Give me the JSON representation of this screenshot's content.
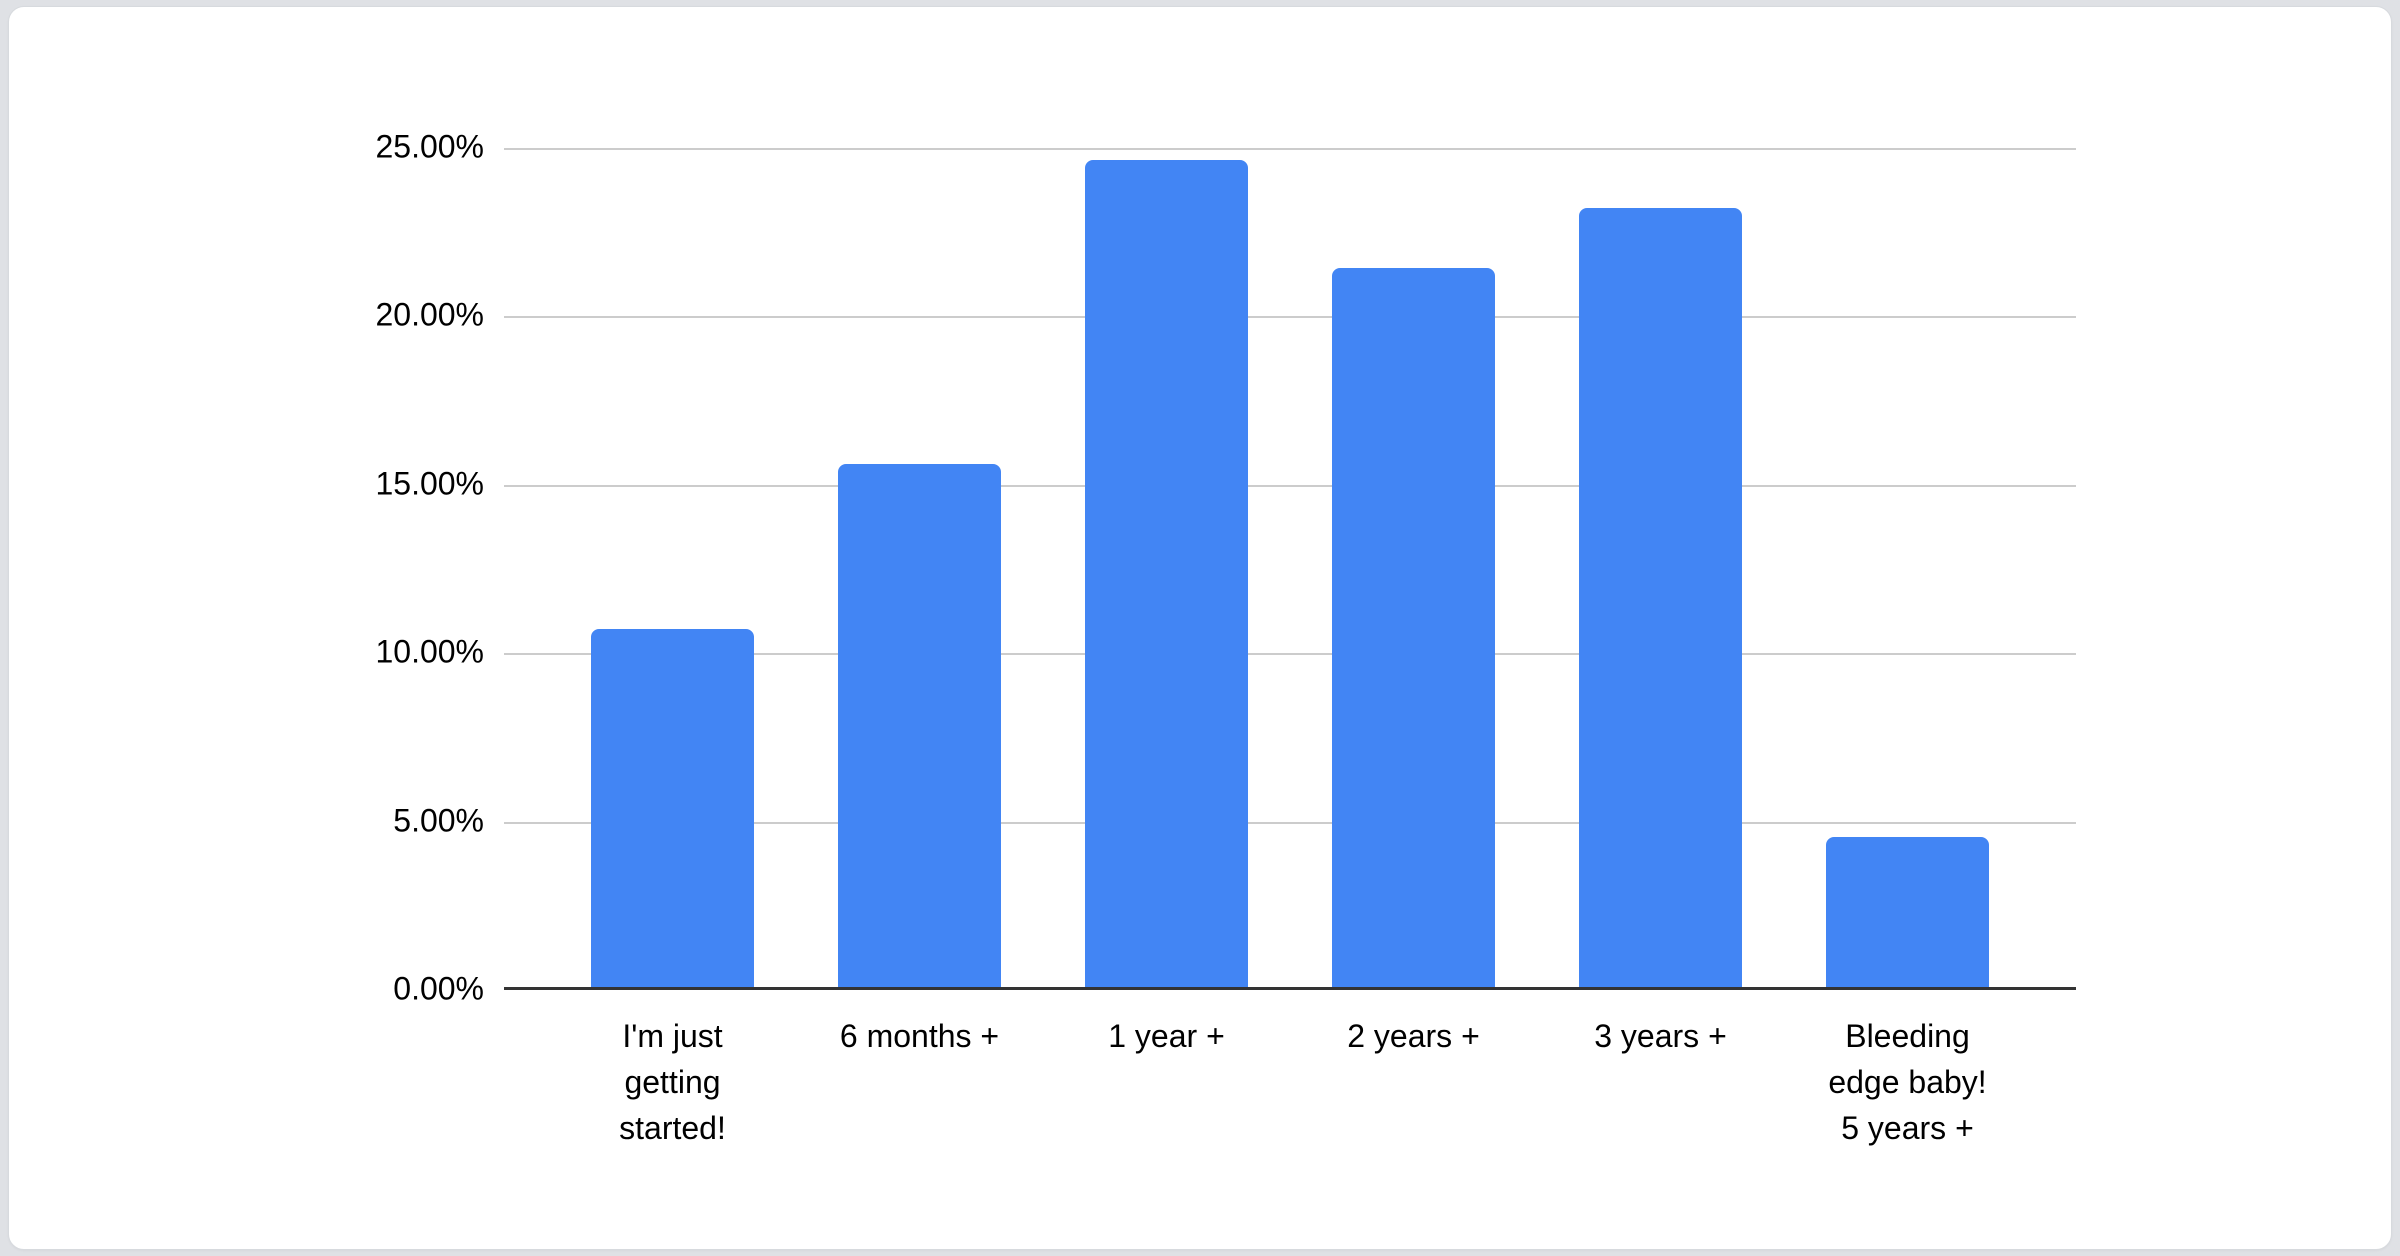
{
  "page": {
    "background_color": "#dfe1e5",
    "card_background_color": "#ffffff"
  },
  "chart_data": {
    "type": "bar",
    "title": "",
    "xlabel": "",
    "ylabel": "",
    "categories": [
      "I'm just\ngetting\nstarted!",
      "6 months +",
      "1 year +",
      "2 years +",
      "3 years +",
      "Bleeding\nedge baby!\n5 years +"
    ],
    "values": [
      10.7,
      15.6,
      24.6,
      21.4,
      23.2,
      4.5
    ],
    "value_unit": "%",
    "ylim": [
      0,
      25
    ],
    "y_tick_values": [
      0,
      5,
      10,
      15,
      20,
      25
    ],
    "y_tick_labels": [
      "0.00%",
      "5.00%",
      "10.00%",
      "15.00%",
      "20.00%",
      "25.00%"
    ],
    "grid": true,
    "legend_position": "none",
    "bar_color": "#4285F4",
    "gridline_color": "#cccccc",
    "axis_color": "#333333",
    "text_color": "#000000"
  }
}
